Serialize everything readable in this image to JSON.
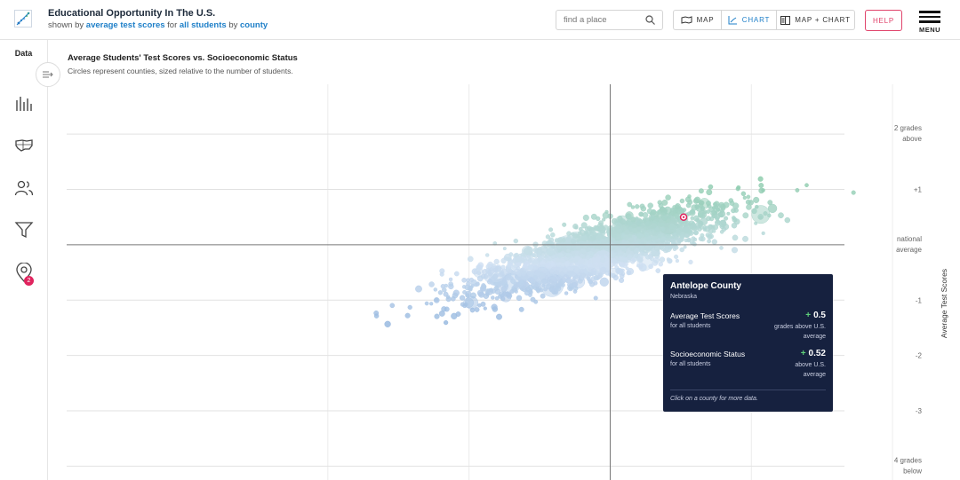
{
  "header": {
    "title": "Educational Opportunity In The U.S.",
    "subtitle_prefix": "shown by",
    "metric": "average test scores",
    "subtitle_for": "for",
    "demographic": "all students",
    "subtitle_by": "by",
    "region": "county",
    "search_placeholder": "find a place",
    "views": [
      {
        "label": "MAP",
        "icon": "map-icon"
      },
      {
        "label": "CHART",
        "icon": "chart-icon",
        "active": true
      },
      {
        "label": "MAP + CHART",
        "icon": "split-view-icon"
      }
    ],
    "help_label": "HELP",
    "menu_label": "MENU"
  },
  "sidebar": {
    "data_label": "Data",
    "items": [
      {
        "icon": "bar-chart-icon"
      },
      {
        "icon": "us-map-icon"
      },
      {
        "icon": "people-icon"
      },
      {
        "icon": "filter-icon"
      },
      {
        "icon": "location-pin-icon",
        "badge": "2"
      }
    ]
  },
  "chart": {
    "title": "Average Students' Test Scores vs. Socioeconomic Status",
    "subtitle": "Circles represent counties, sized relative to the number of students.",
    "y_axis_title": "Average Test Scores",
    "y_tick_labels": [
      {
        "value": 2,
        "lines": [
          "2 grades",
          "above"
        ]
      },
      {
        "value": 1,
        "lines": [
          "+1"
        ]
      },
      {
        "value": 0,
        "lines": [
          "national",
          "average"
        ]
      },
      {
        "value": -1,
        "lines": [
          "-1"
        ]
      },
      {
        "value": -2,
        "lines": [
          "-2"
        ]
      },
      {
        "value": -3,
        "lines": [
          "-3"
        ]
      },
      {
        "value": -4,
        "lines": [
          "4 grades",
          "below"
        ]
      }
    ]
  },
  "tooltip": {
    "county": "Antelope County",
    "state": "Nebraska",
    "metric1_label": "Average Test Scores",
    "metric1_sub": "for all students",
    "metric1_sign": "+",
    "metric1_value": "0.5",
    "metric1_desc": "grades above U.S. average",
    "metric2_label": "Socioeconomic Status",
    "metric2_sub": "for all students",
    "metric2_sign": "+",
    "metric2_value": "0.52",
    "metric2_desc": "above U.S. average",
    "footer": "Click on a county for more data."
  },
  "colors": {
    "accent": "#1e7fc8",
    "help": "#e0436b",
    "tooltip_bg": "#16213f",
    "low": "#2f6fbd",
    "mid": "#cfe0f2",
    "high": "#4cb86b",
    "selected": "#e0245e"
  },
  "chart_data": {
    "type": "scatter",
    "x_label": "Socioeconomic Status",
    "y_label": "Average Test Scores",
    "xlim": [
      -3.85,
      2.1
    ],
    "ylim": [
      -4.25,
      2.9
    ],
    "grid": true,
    "selected": {
      "name": "Antelope County",
      "x": 0.52,
      "y": 0.5
    }
  }
}
